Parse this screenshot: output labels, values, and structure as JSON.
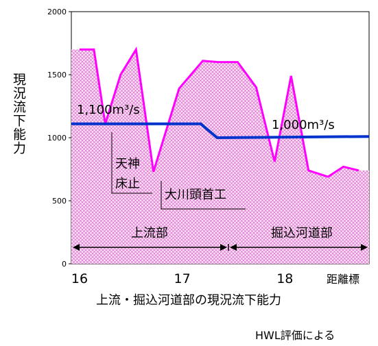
{
  "chart_data": {
    "type": "area",
    "ylabel": "現況流下能力",
    "xlabel": "上流・掘込河道部の現況流下能力",
    "note": "HWL評価による",
    "xlim": [
      15.92,
      18.82
    ],
    "ylim": [
      0,
      2000
    ],
    "yticks": [
      "0",
      "500",
      "1000",
      "1500",
      "2000"
    ],
    "xticks": [
      {
        "value": 16,
        "label": "16"
      },
      {
        "value": 17,
        "label": "17"
      },
      {
        "value": 18,
        "label": "18"
      }
    ],
    "xaxis_label": "距離標",
    "series": [
      {
        "name": "",
        "color": "#ff00ff",
        "x": [
          16.0,
          16.14,
          16.25,
          16.4,
          16.55,
          16.72,
          16.97,
          17.2,
          17.35,
          17.54,
          17.72,
          17.9,
          18.06,
          18.23,
          18.42,
          18.57,
          18.72
        ],
        "y": [
          1700,
          1700,
          1110,
          1500,
          1700,
          730,
          1390,
          1610,
          1600,
          1600,
          1400,
          810,
          1490,
          740,
          690,
          770,
          740
        ]
      },
      {
        "name": "",
        "color": "#0033cc",
        "x": [
          15.92,
          17.18,
          17.34,
          18.82
        ],
        "y": [
          1110,
          1110,
          1000,
          1010
        ]
      }
    ],
    "annotations": [
      {
        "text": "1,100m³/s",
        "x": 15.99,
        "y": 1185
      },
      {
        "text": "1,000m³/s",
        "x": 18.05,
        "y": 1080
      }
    ],
    "markers": [
      {
        "id": "tenjin",
        "lines": [
          "天神",
          "床止"
        ],
        "x": 16.27
      },
      {
        "id": "okawa",
        "lines": [
          "大川頭首工"
        ],
        "x": 16.73
      }
    ],
    "sections": [
      {
        "label": "上流部",
        "from": 15.92,
        "to": 17.34
      },
      {
        "label": "掘込河道部",
        "from": 17.34,
        "to": 18.82
      }
    ]
  }
}
